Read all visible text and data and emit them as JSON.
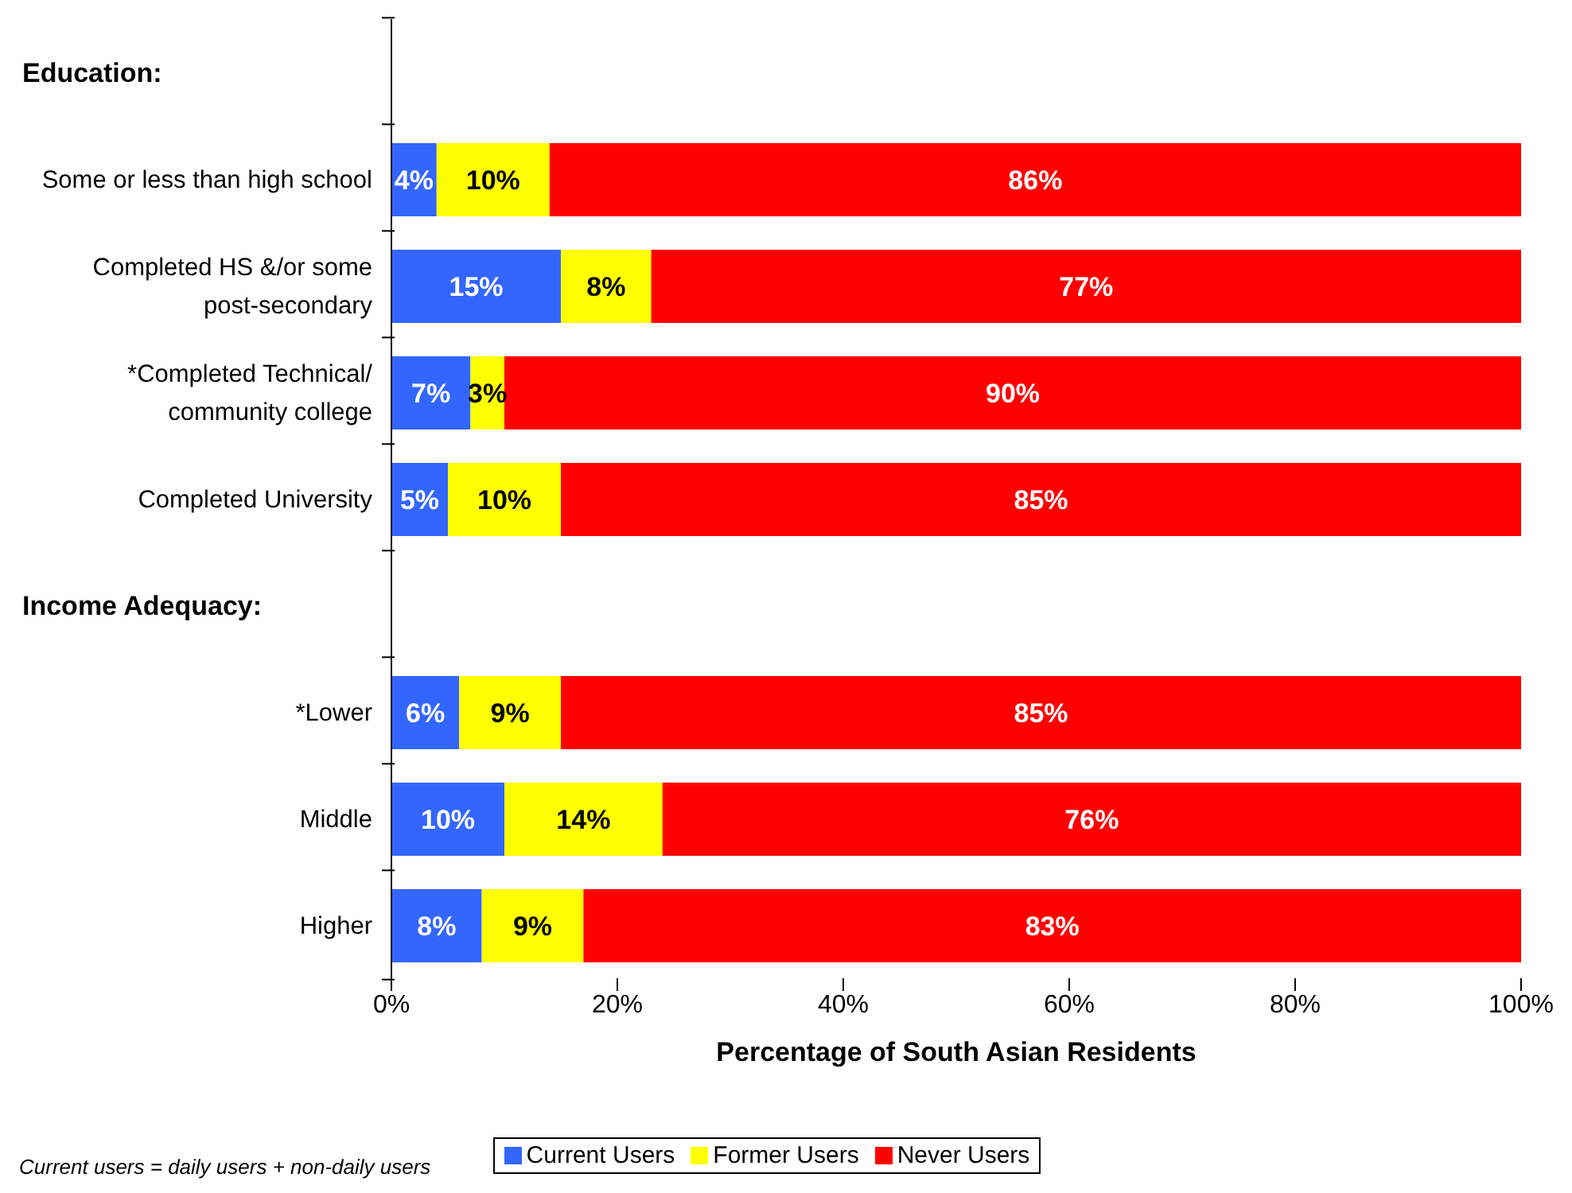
{
  "chart_data": {
    "type": "bar",
    "orientation": "horizontal",
    "stacked": true,
    "categories": [
      null,
      "Some or less than high school",
      "Completed HS &/or some post-secondary",
      "*Completed Technical/ community college",
      "Completed University",
      null,
      "*Lower",
      "Middle",
      "Higher"
    ],
    "series": [
      {
        "name": "Current Users",
        "color": "#3366ff",
        "values": [
          null,
          4,
          15,
          7,
          5,
          null,
          6,
          10,
          8
        ],
        "value_labels": [
          null,
          "4%",
          "15%",
          "7%",
          "5%",
          null,
          "6%",
          "10%",
          "8%"
        ]
      },
      {
        "name": "Former Users",
        "color": "#ffff00",
        "values": [
          null,
          10,
          8,
          3,
          10,
          null,
          9,
          14,
          9
        ],
        "value_labels": [
          null,
          "10%",
          "8%",
          "3%",
          "10%",
          null,
          "9%",
          "14%",
          "9%"
        ]
      },
      {
        "name": "Never Users",
        "color": "#ff0000",
        "values": [
          null,
          86,
          77,
          90,
          85,
          null,
          85,
          76,
          83
        ],
        "value_labels": [
          null,
          "86%",
          "77%",
          "90%",
          "85%",
          null,
          "85%",
          "76%",
          "83%"
        ]
      }
    ],
    "xlim": [
      0,
      100
    ],
    "xticks": [
      {
        "value": 0,
        "label": "0%"
      },
      {
        "value": 20,
        "label": "20%"
      },
      {
        "value": 40,
        "label": "40%"
      },
      {
        "value": 60,
        "label": "60%"
      },
      {
        "value": 80,
        "label": "80%"
      },
      {
        "value": 100,
        "label": "100%"
      }
    ],
    "xlabel": "Percentage of South Asian Residents",
    "legend": "bottom",
    "grid": false,
    "annotations": [
      "Education:",
      "Income Adequacy:",
      "Current users = daily users + non-daily users"
    ]
  }
}
